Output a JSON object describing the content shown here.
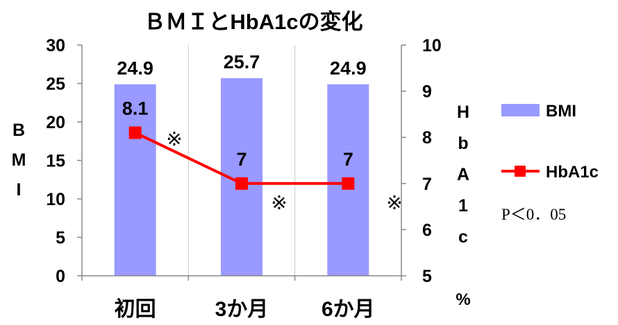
{
  "chart_data": {
    "type": "bar+line",
    "title": "ＢＭＩとHbA1cの変化",
    "categories": [
      "初回",
      "3か月",
      "6か月"
    ],
    "series": [
      {
        "name": "BMI",
        "type": "bar",
        "axis": "left",
        "values": [
          24.9,
          25.7,
          24.9
        ],
        "labels": [
          "24.9",
          "25.7",
          "24.9"
        ],
        "color": "#9999ff"
      },
      {
        "name": "HbA1c",
        "type": "line",
        "axis": "right",
        "values": [
          8.1,
          7,
          7
        ],
        "labels": [
          "8.1",
          "7",
          "7"
        ],
        "color": "#ff0000"
      }
    ],
    "ylabel_left": [
      "B",
      "M",
      "I"
    ],
    "ylabel_right": [
      "H",
      "b",
      "A",
      "1",
      "c"
    ],
    "ylabel_right_unit": "%",
    "ylim_left": [
      0,
      30
    ],
    "yticks_left": [
      "0",
      "5",
      "10",
      "15",
      "20",
      "25",
      "30"
    ],
    "ylim_right": [
      5,
      10
    ],
    "yticks_right": [
      "5",
      "6",
      "7",
      "8",
      "9",
      "10"
    ],
    "grid": "vertical",
    "legend_position": "right",
    "annotation_mark": "※",
    "annotation_note": "P＜0．05"
  }
}
